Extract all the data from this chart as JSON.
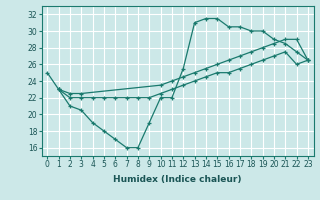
{
  "xlabel": "Humidex (Indice chaleur)",
  "background_color": "#cce8e8",
  "grid_color": "#ffffff",
  "line_color": "#1a7a6e",
  "xlim": [
    -0.5,
    23.5
  ],
  "ylim": [
    15,
    33
  ],
  "yticks": [
    16,
    18,
    20,
    22,
    24,
    26,
    28,
    30,
    32
  ],
  "xticks": [
    0,
    1,
    2,
    3,
    4,
    5,
    6,
    7,
    8,
    9,
    10,
    11,
    12,
    13,
    14,
    15,
    16,
    17,
    18,
    19,
    20,
    21,
    22,
    23
  ],
  "line1_x": [
    0,
    1,
    2,
    3,
    4,
    5,
    6,
    7,
    8,
    9,
    10,
    11,
    12,
    13,
    14,
    15,
    16,
    17,
    18,
    19,
    20,
    21,
    22,
    23
  ],
  "line1_y": [
    25,
    23,
    21,
    20.5,
    19,
    18,
    17,
    16,
    16,
    19,
    22,
    22,
    25.5,
    31,
    31.5,
    31.5,
    30.5,
    30.5,
    30,
    30,
    29,
    28.5,
    27.5,
    26.5
  ],
  "line2_x": [
    1,
    2,
    3,
    10,
    11,
    12,
    13,
    14,
    15,
    16,
    17,
    18,
    19,
    20,
    21,
    22,
    23
  ],
  "line2_y": [
    23,
    22.5,
    22.5,
    23.5,
    24,
    24.5,
    25,
    25.5,
    26,
    26.5,
    27,
    27.5,
    28,
    28.5,
    29,
    29,
    26.5
  ],
  "line3_x": [
    1,
    2,
    3,
    4,
    5,
    6,
    7,
    8,
    9,
    10,
    11,
    12,
    13,
    14,
    15,
    16,
    17,
    18,
    19,
    20,
    21,
    22,
    23
  ],
  "line3_y": [
    23,
    22,
    22,
    22,
    22,
    22,
    22,
    22,
    22,
    22.5,
    23,
    23.5,
    24,
    24.5,
    25,
    25,
    25.5,
    26,
    26.5,
    27,
    27.5,
    26,
    26.5
  ],
  "tick_fontsize": 5.5,
  "xlabel_fontsize": 6.5,
  "tick_color": "#1a5555",
  "spine_color": "#1a7a6e"
}
